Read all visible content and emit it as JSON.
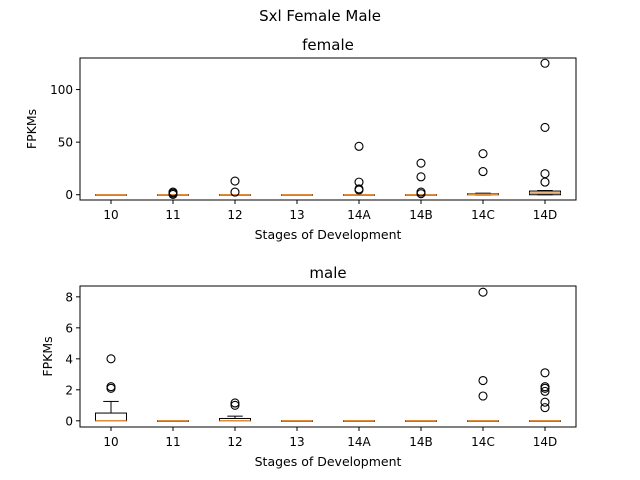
{
  "figure": {
    "suptitle": "Sxl Female Male"
  },
  "colors": {
    "median": "#e08a3c",
    "box": "#000000",
    "flier": "#000000",
    "background": "#ffffff"
  },
  "chart_data": [
    {
      "type": "boxplot",
      "title": "female",
      "xlabel": "Stages of Development",
      "ylabel": "FPKMs",
      "categories": [
        "10",
        "11",
        "12",
        "13",
        "14A",
        "14B",
        "14C",
        "14D"
      ],
      "ylim": [
        -5,
        130
      ],
      "yticks": [
        0,
        50,
        100
      ],
      "grid": false,
      "boxes": [
        {
          "category": "10",
          "q1": 0,
          "median": 0,
          "q3": 0,
          "whisker_low": 0,
          "whisker_high": 0,
          "fliers": []
        },
        {
          "category": "11",
          "q1": 0,
          "median": 0,
          "q3": 0,
          "whisker_low": 0,
          "whisker_high": 0,
          "fliers": [
            0.3,
            1.5,
            2.5
          ]
        },
        {
          "category": "12",
          "q1": 0,
          "median": 0,
          "q3": 0,
          "whisker_low": 0,
          "whisker_high": 0,
          "fliers": [
            2.5,
            13
          ]
        },
        {
          "category": "13",
          "q1": 0,
          "median": 0,
          "q3": 0,
          "whisker_low": 0,
          "whisker_high": 0,
          "fliers": []
        },
        {
          "category": "14A",
          "q1": 0,
          "median": 0,
          "q3": 0,
          "whisker_low": 0,
          "whisker_high": 0,
          "fliers": [
            4.5,
            5.5,
            12,
            46
          ]
        },
        {
          "category": "14B",
          "q1": 0,
          "median": 0,
          "q3": 0,
          "whisker_low": 0,
          "whisker_high": 0,
          "fliers": [
            1,
            2.5,
            17,
            30
          ]
        },
        {
          "category": "14C",
          "q1": 0,
          "median": 0.5,
          "q3": 1,
          "whisker_low": 0,
          "whisker_high": 1.5,
          "fliers": [
            22,
            39
          ]
        },
        {
          "category": "14D",
          "q1": 0,
          "median": 1.5,
          "q3": 3.5,
          "whisker_low": 0,
          "whisker_high": 4,
          "fliers": [
            12,
            20,
            64,
            125
          ]
        }
      ]
    },
    {
      "type": "boxplot",
      "title": "male",
      "xlabel": "Stages of Development",
      "ylabel": "FPKMs",
      "categories": [
        "10",
        "11",
        "12",
        "13",
        "14A",
        "14B",
        "14C",
        "14D"
      ],
      "ylim": [
        -0.4,
        8.7
      ],
      "yticks": [
        0,
        2,
        4,
        6,
        8
      ],
      "grid": false,
      "boxes": [
        {
          "category": "10",
          "q1": 0,
          "median": 0,
          "q3": 0.5,
          "whisker_low": 0,
          "whisker_high": 1.25,
          "fliers": [
            2.1,
            2.2,
            4
          ]
        },
        {
          "category": "11",
          "q1": 0,
          "median": 0,
          "q3": 0,
          "whisker_low": 0,
          "whisker_high": 0,
          "fliers": []
        },
        {
          "category": "12",
          "q1": 0,
          "median": 0,
          "q3": 0.15,
          "whisker_low": 0,
          "whisker_high": 0.3,
          "fliers": [
            1,
            1.15
          ]
        },
        {
          "category": "13",
          "q1": 0,
          "median": 0,
          "q3": 0,
          "whisker_low": 0,
          "whisker_high": 0,
          "fliers": []
        },
        {
          "category": "14A",
          "q1": 0,
          "median": 0,
          "q3": 0,
          "whisker_low": 0,
          "whisker_high": 0,
          "fliers": []
        },
        {
          "category": "14B",
          "q1": 0,
          "median": 0,
          "q3": 0,
          "whisker_low": 0,
          "whisker_high": 0,
          "fliers": []
        },
        {
          "category": "14C",
          "q1": 0,
          "median": 0,
          "q3": 0,
          "whisker_low": 0,
          "whisker_high": 0,
          "fliers": [
            1.6,
            2.6,
            8.3
          ]
        },
        {
          "category": "14D",
          "q1": 0,
          "median": 0,
          "q3": 0,
          "whisker_low": 0,
          "whisker_high": 0,
          "fliers": [
            0.85,
            1.2,
            1.9,
            2.1,
            2.2,
            3.1
          ]
        }
      ]
    }
  ]
}
